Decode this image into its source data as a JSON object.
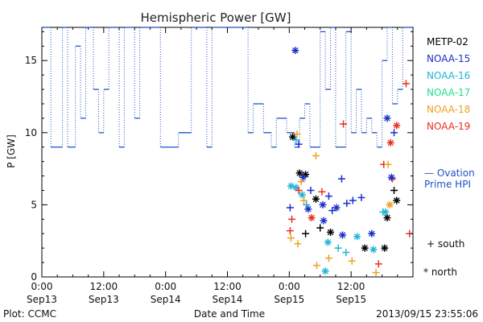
{
  "chart_data": {
    "type": "scatter",
    "title": "Hemispheric Power [GW]",
    "ylabel": "P [GW]",
    "xlabel": "Date and Time",
    "xlim": [
      "2013-09-13 00:00",
      "2013-09-16 00:00"
    ],
    "ylim": [
      0,
      17.3
    ],
    "x_ticks": [
      {
        "label_top": "0:00",
        "label_bottom": "Sep13",
        "value": "2013-09-13 00:00"
      },
      {
        "label_top": "12:00",
        "label_bottom": "Sep13",
        "value": "2013-09-13 12:00"
      },
      {
        "label_top": "0:00",
        "label_bottom": "Sep14",
        "value": "2013-09-14 00:00"
      },
      {
        "label_top": "12:00",
        "label_bottom": "Sep14",
        "value": "2013-09-14 12:00"
      },
      {
        "label_top": "0:00",
        "label_bottom": "Sep15",
        "value": "2013-09-15 00:00"
      },
      {
        "label_top": "12:00",
        "label_bottom": "Sep15",
        "value": "2013-09-15 12:00"
      }
    ],
    "y_ticks": [
      {
        "label": "0",
        "value": 0
      },
      {
        "label": "5",
        "value": 5
      },
      {
        "label": "10",
        "value": 10
      },
      {
        "label": "15",
        "value": 15
      }
    ],
    "satellite_legend": [
      {
        "name": "METP-02",
        "color": "#000000"
      },
      {
        "name": "NOAA-15",
        "color": "#1a2fc8"
      },
      {
        "name": "NOAA-16",
        "color": "#22b4d8"
      },
      {
        "name": "NOAA-17",
        "color": "#22e08a"
      },
      {
        "name": "NOAA-18",
        "color": "#f0a020"
      },
      {
        "name": "NOAA-19",
        "color": "#e83020"
      }
    ],
    "ovation_legend": {
      "line1": "— Ovation",
      "line2": "Prime HPI",
      "color": "#1f52c8"
    },
    "marker_legend": {
      "south": "+ south",
      "north": "* north"
    },
    "ovation_series": [
      [
        "2013-09-13 00:00",
        17.3
      ],
      [
        "2013-09-13 01:45",
        9
      ],
      [
        "2013-09-13 04:00",
        17.3
      ],
      [
        "2013-09-13 05:00",
        9
      ],
      [
        "2013-09-13 06:30",
        16
      ],
      [
        "2013-09-13 07:30",
        11
      ],
      [
        "2013-09-13 08:30",
        17.3
      ],
      [
        "2013-09-13 10:00",
        13
      ],
      [
        "2013-09-13 11:00",
        10
      ],
      [
        "2013-09-13 12:00",
        13
      ],
      [
        "2013-09-13 13:00",
        17.3
      ],
      [
        "2013-09-13 15:00",
        9
      ],
      [
        "2013-09-13 16:00",
        17.3
      ],
      [
        "2013-09-13 17:30",
        17.3
      ],
      [
        "2013-09-13 18:00",
        11
      ],
      [
        "2013-09-13 19:00",
        17.3
      ],
      [
        "2013-09-13 20:00",
        17.3
      ],
      [
        "2013-09-13 23:00",
        9
      ],
      [
        "2013-09-14 02:30",
        10
      ],
      [
        "2013-09-14 05:00",
        17.3
      ],
      [
        "2013-09-14 07:00",
        17.3
      ],
      [
        "2013-09-14 08:00",
        9
      ],
      [
        "2013-09-14 09:00",
        17.3
      ],
      [
        "2013-09-14 16:00",
        10
      ],
      [
        "2013-09-14 17:00",
        12
      ],
      [
        "2013-09-14 19:00",
        10
      ],
      [
        "2013-09-14 20:30",
        9
      ],
      [
        "2013-09-14 21:30",
        11
      ],
      [
        "2013-09-14 23:30",
        10
      ],
      [
        "2013-09-15 01:00",
        9
      ],
      [
        "2013-09-15 02:00",
        11
      ],
      [
        "2013-09-15 03:00",
        12
      ],
      [
        "2013-09-15 04:00",
        9
      ],
      [
        "2013-09-15 06:00",
        17
      ],
      [
        "2013-09-15 07:00",
        13
      ],
      [
        "2013-09-15 08:00",
        17.3
      ],
      [
        "2013-09-15 09:00",
        9
      ],
      [
        "2013-09-15 11:00",
        17
      ],
      [
        "2013-09-15 12:00",
        10
      ],
      [
        "2013-09-15 13:00",
        13
      ],
      [
        "2013-09-15 14:00",
        10
      ],
      [
        "2013-09-15 15:00",
        11
      ],
      [
        "2013-09-15 16:00",
        10
      ],
      [
        "2013-09-15 17:00",
        9
      ],
      [
        "2013-09-15 18:00",
        15
      ],
      [
        "2013-09-15 19:00",
        17.3
      ],
      [
        "2013-09-15 20:00",
        12
      ],
      [
        "2013-09-15 21:00",
        13
      ],
      [
        "2013-09-15 22:00",
        17.3
      ],
      [
        "2013-09-15 23:30",
        17.3
      ]
    ],
    "points": [
      {
        "sat": "METP-02",
        "hemi": "north",
        "x": "2013-09-15 00:40",
        "y": 9.7
      },
      {
        "sat": "NOAA-15",
        "hemi": "north",
        "x": "2013-09-15 01:10",
        "y": 15.7
      },
      {
        "sat": "NOAA-16",
        "hemi": "south",
        "x": "2013-09-15 01:20",
        "y": 9.5
      },
      {
        "sat": "NOAA-18",
        "hemi": "south",
        "x": "2013-09-15 01:30",
        "y": 9.9
      },
      {
        "sat": "NOAA-15",
        "hemi": "south",
        "x": "2013-09-15 01:50",
        "y": 9.2
      },
      {
        "sat": "NOAA-18",
        "hemi": "south",
        "x": "2013-09-15 05:10",
        "y": 8.4
      },
      {
        "sat": "NOAA-19",
        "hemi": "south",
        "x": "2013-09-15 10:30",
        "y": 10.6
      },
      {
        "sat": "NOAA-19",
        "hemi": "south",
        "x": "2013-09-15 22:40",
        "y": 13.4
      },
      {
        "sat": "NOAA-15",
        "hemi": "north",
        "x": "2013-09-15 19:00",
        "y": 11.0
      },
      {
        "sat": "NOAA-19",
        "hemi": "north",
        "x": "2013-09-15 20:50",
        "y": 10.5
      },
      {
        "sat": "NOAA-15",
        "hemi": "south",
        "x": "2013-09-15 20:20",
        "y": 10.0
      },
      {
        "sat": "NOAA-19",
        "hemi": "south",
        "x": "2013-09-15 18:20",
        "y": 7.8
      },
      {
        "sat": "NOAA-19",
        "hemi": "north",
        "x": "2013-09-15 19:40",
        "y": 9.3
      },
      {
        "sat": "NOAA-18",
        "hemi": "south",
        "x": "2013-09-15 19:10",
        "y": 7.8
      },
      {
        "sat": "METP-02",
        "hemi": "north",
        "x": "2013-09-15 02:00",
        "y": 7.2
      },
      {
        "sat": "METP-02",
        "hemi": "north",
        "x": "2013-09-15 03:10",
        "y": 7.1
      },
      {
        "sat": "NOAA-15",
        "hemi": "north",
        "x": "2013-09-15 02:40",
        "y": 6.9
      },
      {
        "sat": "NOAA-18",
        "hemi": "south",
        "x": "2013-09-15 02:20",
        "y": 6.6
      },
      {
        "sat": "NOAA-16",
        "hemi": "north",
        "x": "2013-09-15 00:20",
        "y": 6.3
      },
      {
        "sat": "NOAA-16",
        "hemi": "north",
        "x": "2013-09-15 01:20",
        "y": 6.2
      },
      {
        "sat": "NOAA-19",
        "hemi": "south",
        "x": "2013-09-15 01:50",
        "y": 6.0
      },
      {
        "sat": "NOAA-15",
        "hemi": "south",
        "x": "2013-09-15 04:10",
        "y": 6.0
      },
      {
        "sat": "NOAA-15",
        "hemi": "south",
        "x": "2013-09-15 00:10",
        "y": 4.8
      },
      {
        "sat": "NOAA-19",
        "hemi": "south",
        "x": "2013-09-15 06:20",
        "y": 5.9
      },
      {
        "sat": "NOAA-15",
        "hemi": "south",
        "x": "2013-09-15 07:40",
        "y": 5.6
      },
      {
        "sat": "NOAA-15",
        "hemi": "south",
        "x": "2013-09-15 10:10",
        "y": 6.8
      },
      {
        "sat": "NOAA-18",
        "hemi": "south",
        "x": "2013-09-15 02:50",
        "y": 5.3
      },
      {
        "sat": "NOAA-16",
        "hemi": "south",
        "x": "2013-09-15 03:20",
        "y": 5.0
      },
      {
        "sat": "NOAA-16",
        "hemi": "north",
        "x": "2013-09-15 02:30",
        "y": 5.7
      },
      {
        "sat": "NOAA-15",
        "hemi": "north",
        "x": "2013-09-15 03:40",
        "y": 4.7
      },
      {
        "sat": "METP-02",
        "hemi": "north",
        "x": "2013-09-15 05:10",
        "y": 5.4
      },
      {
        "sat": "NOAA-15",
        "hemi": "north",
        "x": "2013-09-15 06:30",
        "y": 5.0
      },
      {
        "sat": "NOAA-15",
        "hemi": "south",
        "x": "2013-09-15 08:20",
        "y": 4.6
      },
      {
        "sat": "NOAA-15",
        "hemi": "north",
        "x": "2013-09-15 09:10",
        "y": 4.8
      },
      {
        "sat": "NOAA-15",
        "hemi": "south",
        "x": "2013-09-15 11:10",
        "y": 5.1
      },
      {
        "sat": "NOAA-15",
        "hemi": "south",
        "x": "2013-09-15 12:20",
        "y": 5.3
      },
      {
        "sat": "NOAA-15",
        "hemi": "south",
        "x": "2013-09-15 14:00",
        "y": 5.5
      },
      {
        "sat": "NOAA-19",
        "hemi": "south",
        "x": "2013-09-15 00:30",
        "y": 4.0
      },
      {
        "sat": "NOAA-19",
        "hemi": "north",
        "x": "2013-09-15 04:20",
        "y": 4.1
      },
      {
        "sat": "METP-02",
        "hemi": "south",
        "x": "2013-09-15 03:10",
        "y": 3.0
      },
      {
        "sat": "NOAA-18",
        "hemi": "south",
        "x": "2013-09-15 00:20",
        "y": 2.7
      },
      {
        "sat": "NOAA-19",
        "hemi": "south",
        "x": "2013-09-15 00:10",
        "y": 3.2
      },
      {
        "sat": "NOAA-18",
        "hemi": "south",
        "x": "2013-09-15 01:40",
        "y": 2.3
      },
      {
        "sat": "METP-02",
        "hemi": "south",
        "x": "2013-09-15 06:00",
        "y": 3.4
      },
      {
        "sat": "NOAA-15",
        "hemi": "north",
        "x": "2013-09-15 06:40",
        "y": 3.9
      },
      {
        "sat": "METP-02",
        "hemi": "north",
        "x": "2013-09-15 08:00",
        "y": 3.1
      },
      {
        "sat": "NOAA-16",
        "hemi": "north",
        "x": "2013-09-15 07:30",
        "y": 2.4
      },
      {
        "sat": "NOAA-18",
        "hemi": "south",
        "x": "2013-09-15 05:20",
        "y": 0.8
      },
      {
        "sat": "NOAA-16",
        "hemi": "north",
        "x": "2013-09-15 07:00",
        "y": 0.4
      },
      {
        "sat": "NOAA-18",
        "hemi": "south",
        "x": "2013-09-15 07:40",
        "y": 1.3
      },
      {
        "sat": "NOAA-16",
        "hemi": "south",
        "x": "2013-09-15 09:30",
        "y": 2.0
      },
      {
        "sat": "NOAA-15",
        "hemi": "north",
        "x": "2013-09-15 10:20",
        "y": 2.9
      },
      {
        "sat": "NOAA-16",
        "hemi": "south",
        "x": "2013-09-15 11:00",
        "y": 1.7
      },
      {
        "sat": "NOAA-18",
        "hemi": "south",
        "x": "2013-09-15 12:10",
        "y": 1.1
      },
      {
        "sat": "NOAA-16",
        "hemi": "north",
        "x": "2013-09-15 13:10",
        "y": 2.8
      },
      {
        "sat": "METP-02",
        "hemi": "north",
        "x": "2013-09-15 14:40",
        "y": 2.0
      },
      {
        "sat": "NOAA-15",
        "hemi": "north",
        "x": "2013-09-15 16:00",
        "y": 3.0
      },
      {
        "sat": "NOAA-16",
        "hemi": "north",
        "x": "2013-09-15 16:20",
        "y": 1.9
      },
      {
        "sat": "NOAA-18",
        "hemi": "south",
        "x": "2013-09-15 16:50",
        "y": 0.3
      },
      {
        "sat": "METP-02",
        "hemi": "north",
        "x": "2013-09-15 18:30",
        "y": 2.0
      },
      {
        "sat": "METP-02",
        "hemi": "north",
        "x": "2013-09-15 19:00",
        "y": 4.1
      },
      {
        "sat": "NOAA-16",
        "hemi": "south",
        "x": "2013-09-15 18:10",
        "y": 4.5
      },
      {
        "sat": "NOAA-19",
        "hemi": "south",
        "x": "2013-09-15 17:20",
        "y": 0.9
      },
      {
        "sat": "METP-02",
        "hemi": "north",
        "x": "2013-09-15 20:50",
        "y": 5.3
      },
      {
        "sat": "METP-02",
        "hemi": "south",
        "x": "2013-09-15 20:20",
        "y": 6.0
      },
      {
        "sat": "NOAA-19",
        "hemi": "south",
        "x": "2013-09-15 20:00",
        "y": 6.8
      },
      {
        "sat": "NOAA-15",
        "hemi": "north",
        "x": "2013-09-15 19:50",
        "y": 6.9
      },
      {
        "sat": "NOAA-19",
        "hemi": "south",
        "x": "2013-09-15 23:20",
        "y": 3.0
      },
      {
        "sat": "NOAA-18",
        "hemi": "north",
        "x": "2013-09-15 19:30",
        "y": 5.0
      },
      {
        "sat": "NOAA-16",
        "hemi": "north",
        "x": "2013-09-15 18:40",
        "y": 4.5
      }
    ]
  },
  "footer": {
    "left": "Plot: CCMC",
    "right": "2013/09/15 23:55:06"
  }
}
